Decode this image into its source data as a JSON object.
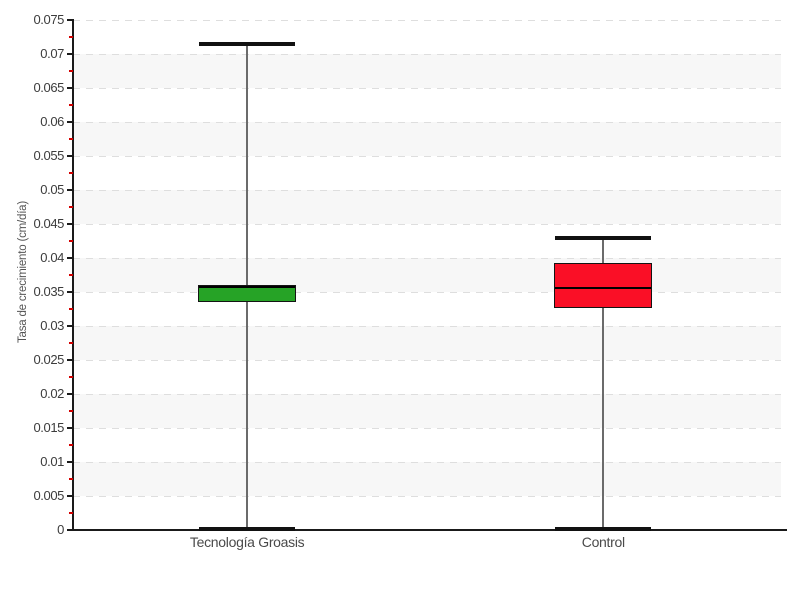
{
  "chart_data": {
    "type": "boxplot",
    "title": "",
    "xlabel": "",
    "ylabel": "Tasa de crecimiento (cm/día)",
    "ylim": [
      0,
      0.075
    ],
    "ytick_step": 0.005,
    "ytick_labels": [
      "0.075",
      "0.07",
      "0.065",
      "0.06",
      "0.055",
      "0.05",
      "0.045",
      "0.04",
      "0.035",
      "0.03",
      "0.025",
      "0.02",
      "0.015",
      "0.01",
      "0.005",
      "0"
    ],
    "minor_ticks_between_majors": 1,
    "grid": "dashed horizontal lines at each major tick",
    "background_bands": "alternating white / light-gray bands every 0.005, gray from 0.005-0.01 up to 0.065-0.07",
    "categories": [
      "Tecnología Groasis",
      "Control"
    ],
    "category_pos": [
      0.246,
      0.749
    ],
    "series": [
      {
        "name": "Tecnología Groasis",
        "min": 0,
        "q1": 0.0335,
        "median": 0.0358,
        "q3": 0.036,
        "max": 0.0715,
        "color": "#26a326"
      },
      {
        "name": "Control",
        "min": 0,
        "q1": 0.0327,
        "median": 0.0356,
        "q3": 0.0393,
        "max": 0.0429,
        "color": "#fa0f26"
      }
    ]
  },
  "style": {
    "axis_color": "#1a1a1a",
    "major_tick_color": "#1a1a1a",
    "minor_tick_color": "#d40000",
    "gridline_color": "#dedede",
    "band_color": "#f7f7f7",
    "whisker_line_color": "#6b6b6b",
    "whisker_cap_color": "#111111",
    "box_border_color": "#141414",
    "median_line_color": "#000000",
    "tick_label_color": "#3c3c3c",
    "category_label_color": "#4a4a4a",
    "axis_title_color": "#555555",
    "background_color": "#ffffff"
  }
}
